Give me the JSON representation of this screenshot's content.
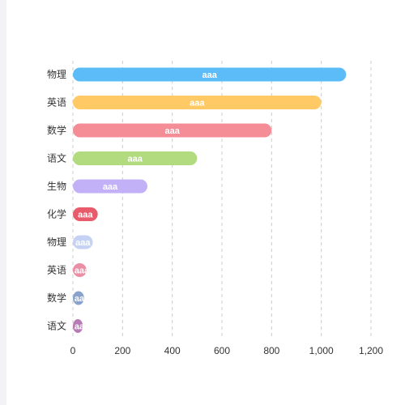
{
  "chart_data": {
    "type": "bar",
    "orientation": "horizontal",
    "categories": [
      "物理",
      "英语",
      "数学",
      "语文",
      "生物",
      "化学",
      "物理",
      "英语",
      "数学",
      "语文"
    ],
    "values": [
      1100,
      1000,
      800,
      500,
      300,
      100,
      80,
      55,
      45,
      40
    ],
    "data_labels": [
      "aaa",
      "aaa",
      "aaa",
      "aaa",
      "aaa",
      "aaa",
      "aaa",
      "aaa",
      "aaa",
      "aaa"
    ],
    "colors": [
      "#5bbcf8",
      "#ffca66",
      "#f48d96",
      "#b2db80",
      "#c3b1f7",
      "#e85b6b",
      "#c6d2f3",
      "#ea8fa5",
      "#8aa3cc",
      "#b77bb5"
    ],
    "xlim": [
      0,
      1200
    ],
    "xticks": [
      0,
      200,
      400,
      600,
      800,
      1000,
      1200
    ],
    "xtick_labels": [
      "0",
      "200",
      "400",
      "600",
      "800",
      "1,000",
      "1,200"
    ],
    "grid": "vertical-dashed",
    "title": "",
    "xlabel": "",
    "ylabel": ""
  }
}
